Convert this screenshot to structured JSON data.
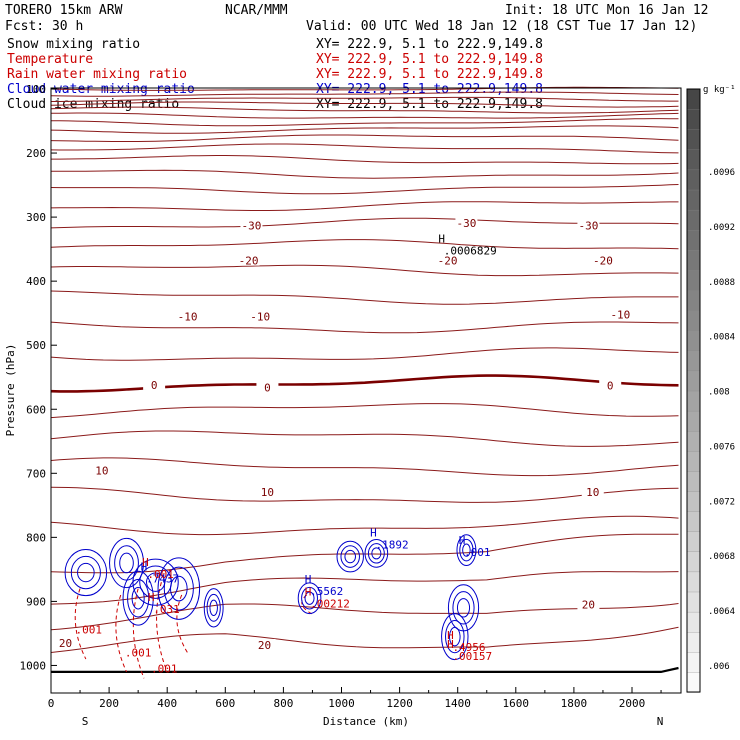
{
  "header": {
    "model": "TORERO  15km ARW",
    "center": "NCAR/MMM",
    "init": "Init: 18 UTC Mon 16 Jan 12",
    "fcst": "Fcst:   30 h",
    "valid": "Valid: 00 UTC Wed 18 Jan 12 (18 CST Tue 17 Jan 12)"
  },
  "legend": [
    {
      "name": "Snow mixing ratio",
      "xy": "XY= 222.9,  5.1 to 222.9,149.8",
      "color": "#000000"
    },
    {
      "name": "Temperature",
      "xy": "XY= 222.9,  5.1 to 222.9,149.8",
      "color": "#cc0000"
    },
    {
      "name": "Rain water mixing ratio",
      "xy": "XY= 222.9,  5.1 to 222.9,149.8",
      "color": "#cc0000"
    },
    {
      "name": "Cloud water mixing ratio",
      "xy": "XY= 222.9,  5.1 to 222.9,149.8",
      "color": "#0000cc"
    },
    {
      "name": "Cloud ice mixing ratio",
      "xy": "XY= 222.9,  5.1 to 222.9,149.8",
      "color": "#000000"
    }
  ],
  "chart_data": {
    "type": "contour cross-section",
    "xlabel": "Distance (km)",
    "ylabel": "Pressure (hPa)",
    "xlim": [
      0,
      2170
    ],
    "ylim": [
      1050,
      100
    ],
    "x_ticks": [
      "0",
      "200",
      "400",
      "600",
      "800",
      "1000",
      "1200",
      "1400",
      "1600",
      "1800",
      "2000"
    ],
    "y_ticks": [
      "100",
      "200",
      "300",
      "400",
      "500",
      "600",
      "700",
      "800",
      "900",
      "1000"
    ],
    "endpoints": {
      "left": "S",
      "right": "N"
    },
    "temperature_labels": [
      {
        "text": "-30",
        "x": 690,
        "p": 313
      },
      {
        "text": "-30",
        "x": 1430,
        "p": 309
      },
      {
        "text": "-30",
        "x": 1850,
        "p": 313
      },
      {
        "text": "-20",
        "x": 680,
        "p": 368
      },
      {
        "text": "-20",
        "x": 1365,
        "p": 368
      },
      {
        "text": "-20",
        "x": 1900,
        "p": 368
      },
      {
        "text": "-10",
        "x": 470,
        "p": 455
      },
      {
        "text": "-10",
        "x": 720,
        "p": 455
      },
      {
        "text": "-10",
        "x": 1960,
        "p": 452
      },
      {
        "text": "0",
        "x": 355,
        "p": 562
      },
      {
        "text": "0",
        "x": 745,
        "p": 566
      },
      {
        "text": "0",
        "x": 1925,
        "p": 563
      },
      {
        "text": "10",
        "x": 175,
        "p": 696
      },
      {
        "text": "10",
        "x": 745,
        "p": 729
      },
      {
        "text": "10",
        "x": 1865,
        "p": 729
      },
      {
        "text": "20",
        "x": 50,
        "p": 965
      },
      {
        "text": "20",
        "x": 735,
        "p": 968
      },
      {
        "text": "20",
        "x": 1850,
        "p": 905
      }
    ],
    "max_markers": [
      {
        "letter": "H",
        "value": ".0006829",
        "x": 1345,
        "p": 352,
        "color": "#000000"
      },
      {
        "letter": "H",
        "value": ".7437",
        "x": 320,
        "p": 864,
        "color": "#0000cc"
      },
      {
        "letter": "H",
        "value": ".031",
        "x": 345,
        "p": 912,
        "color": "#cc0000"
      },
      {
        "letter": "H",
        "value": ".001",
        "x": 325,
        "p": 857,
        "color": "#cc0000"
      },
      {
        "letter": "H",
        "value": ".5562",
        "x": 885,
        "p": 884,
        "color": "#0000cc"
      },
      {
        "letter": "H",
        "value": ".00212",
        "x": 885,
        "p": 903,
        "color": "#cc0000"
      },
      {
        "letter": "H",
        "value": ".1892",
        "x": 1110,
        "p": 811,
        "color": "#0000cc"
      },
      {
        "letter": "H",
        "value": ".001",
        "x": 1415,
        "p": 823,
        "color": "#0000cc"
      },
      {
        "letter": "H",
        "value": ".4956",
        "x": 1375,
        "p": 971,
        "color": "#cc0000"
      },
      {
        "letter": "H",
        "value": ".00157",
        "x": 1375,
        "p": 985,
        "color": "#cc0000"
      }
    ],
    "rain_labels": [
      {
        "text": ".001",
        "x": 130,
        "p": 944
      },
      {
        "text": ".001",
        "x": 300,
        "p": 980
      },
      {
        "text": ".001",
        "x": 390,
        "p": 1005
      }
    ],
    "colorbar": {
      "unit": "g kg⁻¹",
      "labels": [
        ".0096",
        ".0092",
        ".0088",
        ".0084",
        ".008",
        ".0076",
        ".0072",
        ".0068",
        ".0064",
        ".006"
      ]
    }
  }
}
